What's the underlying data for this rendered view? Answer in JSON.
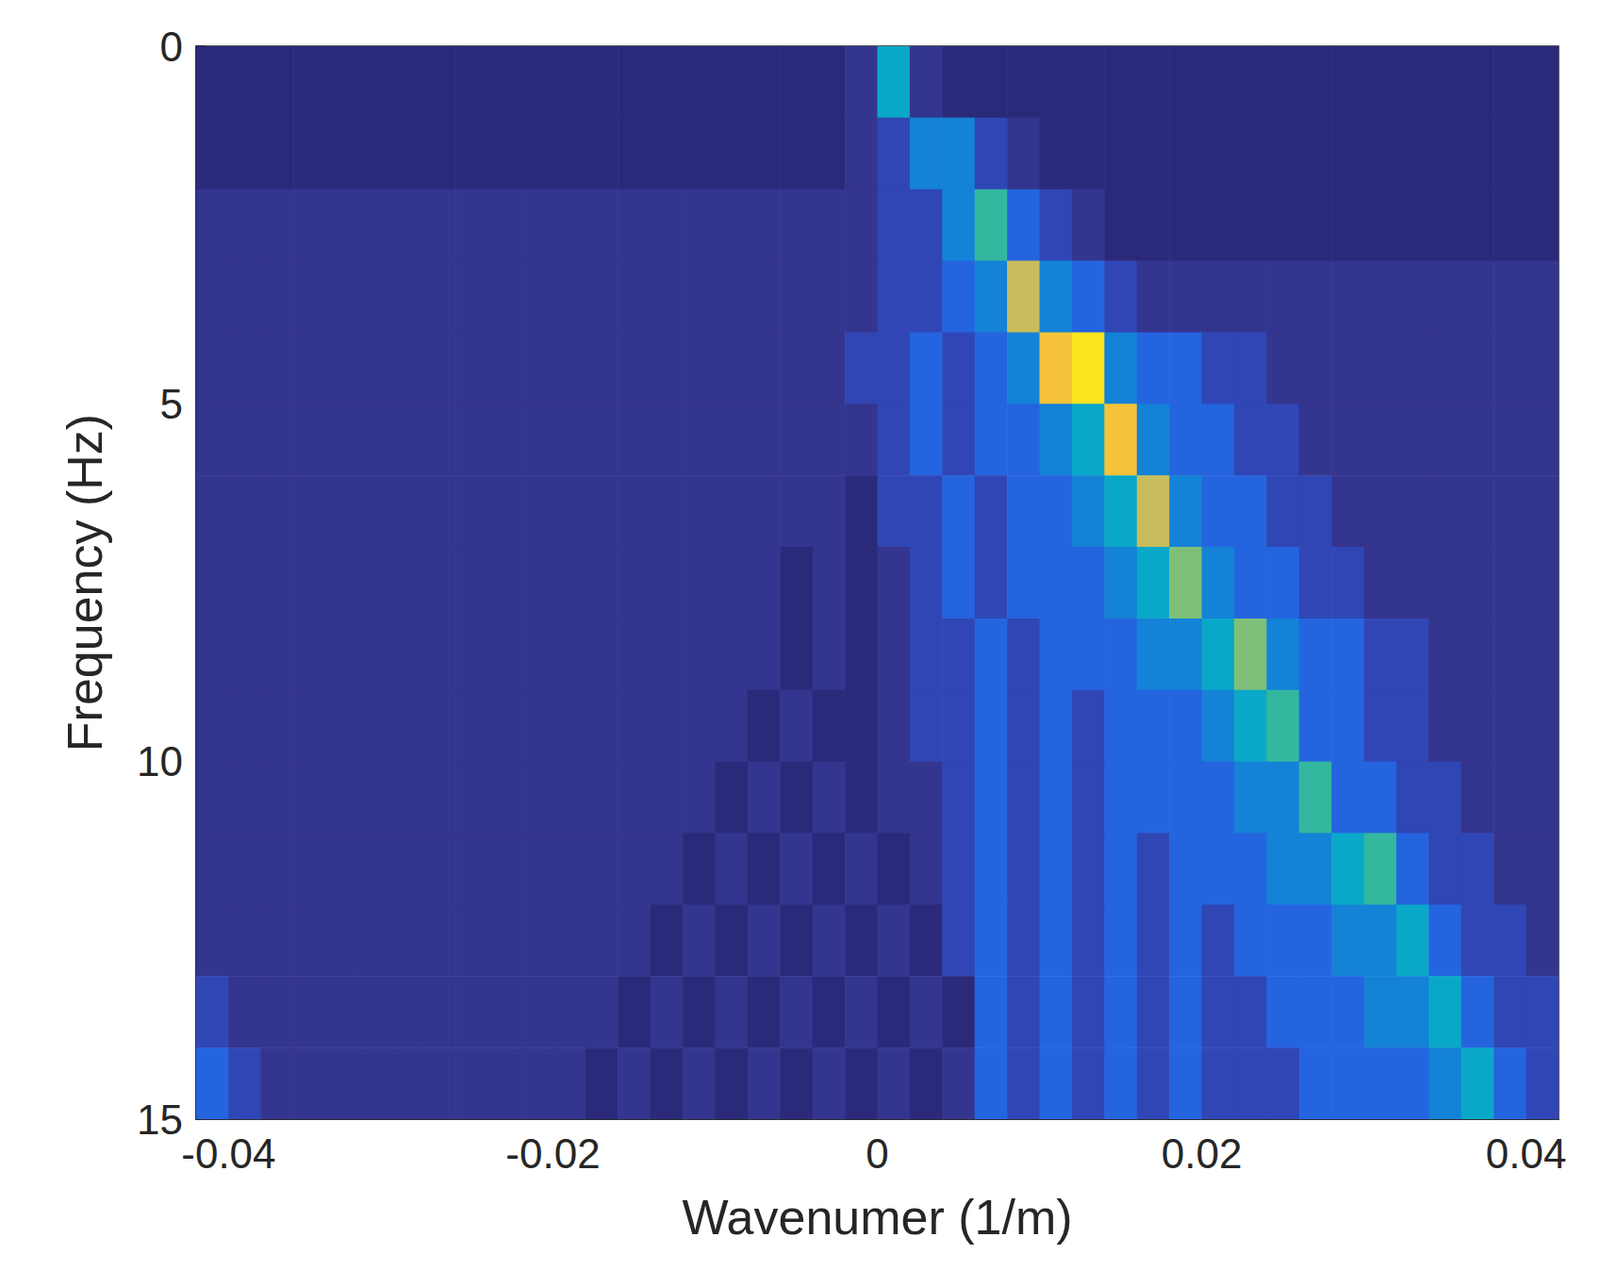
{
  "chart_data": {
    "type": "heatmap",
    "x_label": "Wavenumer (1/m)",
    "y_label": "Frequency (Hz)",
    "xlim": [
      -0.042,
      0.042
    ],
    "xticks": [
      -0.04,
      -0.02,
      0,
      0.02,
      0.04
    ],
    "ylim": [
      0,
      15
    ],
    "yticks": [
      0,
      5,
      10,
      15
    ],
    "zlim": [
      0,
      10
    ],
    "x": [
      -0.041,
      -0.039,
      -0.037,
      -0.035,
      -0.033,
      -0.031,
      -0.029,
      -0.027,
      -0.025,
      -0.023,
      -0.021,
      -0.019,
      -0.017,
      -0.015,
      -0.013,
      -0.011,
      -0.009,
      -0.007,
      -0.005,
      -0.003,
      -0.001,
      0.001,
      0.003,
      0.005,
      0.007,
      0.009,
      0.011,
      0.013,
      0.015,
      0.017,
      0.019,
      0.021,
      0.023,
      0.025,
      0.027,
      0.029,
      0.031,
      0.033,
      0.035,
      0.037,
      0.039,
      0.041
    ],
    "y": [
      0.5,
      1.5,
      2.5,
      3.5,
      4.5,
      5.5,
      6.5,
      7.5,
      8.5,
      9.5,
      10.5,
      11.5,
      12.5,
      13.5,
      14.5
    ],
    "z": [
      [
        0,
        0,
        0,
        0,
        0,
        0,
        0,
        0,
        0,
        0,
        0,
        0,
        0,
        0,
        0,
        0,
        0,
        0,
        0,
        0,
        1,
        5,
        1,
        0,
        0,
        0,
        0,
        0,
        0,
        0,
        0,
        0,
        0,
        0,
        0,
        0,
        0,
        0,
        0,
        0,
        0,
        0
      ],
      [
        0,
        0,
        0,
        0,
        0,
        0,
        0,
        0,
        0,
        0,
        0,
        0,
        0,
        0,
        0,
        0,
        0,
        0,
        0,
        0,
        1,
        2,
        4,
        4,
        2,
        1,
        0,
        0,
        0,
        0,
        0,
        0,
        0,
        0,
        0,
        0,
        0,
        0,
        0,
        0,
        0,
        0
      ],
      [
        1,
        1,
        1,
        1,
        1,
        1,
        1,
        1,
        1,
        1,
        1,
        1,
        1,
        1,
        1,
        1,
        1,
        1,
        1,
        1,
        1,
        2,
        2,
        4,
        6,
        3,
        2,
        1,
        0,
        0,
        0,
        0,
        0,
        0,
        0,
        0,
        0,
        0,
        0,
        0,
        0,
        0
      ],
      [
        1,
        1,
        1,
        1,
        1,
        1,
        1,
        1,
        1,
        1,
        1,
        1,
        1,
        1,
        1,
        1,
        1,
        1,
        1,
        1,
        1,
        2,
        2,
        3,
        4,
        8,
        4,
        3,
        2,
        1,
        1,
        1,
        1,
        1,
        1,
        1,
        1,
        1,
        1,
        1,
        1,
        1
      ],
      [
        1,
        1,
        1,
        1,
        1,
        1,
        1,
        1,
        1,
        1,
        1,
        1,
        1,
        1,
        1,
        1,
        1,
        1,
        1,
        1,
        2,
        2,
        3,
        2,
        3,
        4,
        9,
        10,
        4,
        3,
        3,
        2,
        2,
        1,
        1,
        1,
        1,
        1,
        1,
        1,
        1,
        1
      ],
      [
        1,
        1,
        1,
        1,
        1,
        1,
        1,
        1,
        1,
        1,
        1,
        1,
        1,
        1,
        1,
        1,
        1,
        1,
        1,
        1,
        1,
        2,
        3,
        2,
        3,
        3,
        4,
        5,
        9,
        4,
        3,
        3,
        2,
        2,
        1,
        1,
        1,
        1,
        1,
        1,
        1,
        1
      ],
      [
        1,
        1,
        1,
        1,
        1,
        1,
        1,
        1,
        1,
        1,
        1,
        1,
        1,
        1,
        1,
        1,
        1,
        1,
        1,
        1,
        0,
        2,
        2,
        3,
        2,
        3,
        3,
        4,
        5,
        8,
        4,
        3,
        3,
        2,
        2,
        1,
        1,
        1,
        1,
        1,
        1,
        1
      ],
      [
        1,
        1,
        1,
        1,
        1,
        1,
        1,
        1,
        1,
        1,
        1,
        1,
        1,
        1,
        1,
        1,
        1,
        1,
        0,
        1,
        0,
        1,
        2,
        3,
        2,
        3,
        3,
        3,
        4,
        5,
        7,
        4,
        3,
        3,
        2,
        2,
        1,
        1,
        1,
        1,
        1,
        1
      ],
      [
        1,
        1,
        1,
        1,
        1,
        1,
        1,
        1,
        1,
        1,
        1,
        1,
        1,
        1,
        1,
        1,
        1,
        1,
        0,
        1,
        0,
        1,
        2,
        2,
        3,
        2,
        3,
        3,
        3,
        4,
        4,
        5,
        7,
        4,
        3,
        3,
        2,
        2,
        1,
        1,
        1,
        1
      ],
      [
        1,
        1,
        1,
        1,
        1,
        1,
        1,
        1,
        1,
        1,
        1,
        1,
        1,
        1,
        1,
        1,
        1,
        0,
        1,
        0,
        0,
        1,
        2,
        2,
        3,
        2,
        3,
        2,
        3,
        3,
        3,
        4,
        5,
        6,
        3,
        3,
        2,
        2,
        1,
        1,
        1,
        1
      ],
      [
        1,
        1,
        1,
        1,
        1,
        1,
        1,
        1,
        1,
        1,
        1,
        1,
        1,
        1,
        1,
        1,
        0,
        1,
        0,
        1,
        0,
        1,
        1,
        2,
        3,
        2,
        3,
        2,
        3,
        3,
        3,
        3,
        4,
        4,
        6,
        3,
        3,
        2,
        2,
        1,
        1,
        1
      ],
      [
        1,
        1,
        1,
        1,
        1,
        1,
        1,
        1,
        1,
        1,
        1,
        1,
        1,
        1,
        1,
        0,
        1,
        0,
        1,
        0,
        1,
        0,
        1,
        2,
        3,
        2,
        3,
        2,
        3,
        2,
        3,
        3,
        3,
        4,
        4,
        5,
        6,
        3,
        2,
        2,
        1,
        1
      ],
      [
        1,
        1,
        1,
        1,
        1,
        1,
        1,
        1,
        1,
        1,
        1,
        1,
        1,
        1,
        0,
        1,
        0,
        1,
        0,
        1,
        0,
        1,
        0,
        2,
        3,
        2,
        3,
        2,
        3,
        2,
        3,
        2,
        3,
        3,
        3,
        4,
        4,
        5,
        3,
        2,
        2,
        1
      ],
      [
        2,
        1,
        1,
        1,
        1,
        1,
        1,
        1,
        1,
        1,
        1,
        1,
        1,
        0,
        1,
        0,
        1,
        0,
        1,
        0,
        1,
        0,
        1,
        0,
        3,
        2,
        3,
        2,
        3,
        2,
        3,
        2,
        2,
        3,
        3,
        3,
        4,
        4,
        5,
        3,
        2,
        2
      ],
      [
        3,
        2,
        1,
        1,
        1,
        1,
        1,
        1,
        1,
        1,
        1,
        1,
        0,
        1,
        0,
        1,
        0,
        1,
        0,
        1,
        0,
        1,
        0,
        1,
        3,
        2,
        3,
        2,
        3,
        2,
        3,
        2,
        2,
        2,
        3,
        3,
        3,
        3,
        4,
        5,
        3,
        2
      ]
    ]
  }
}
